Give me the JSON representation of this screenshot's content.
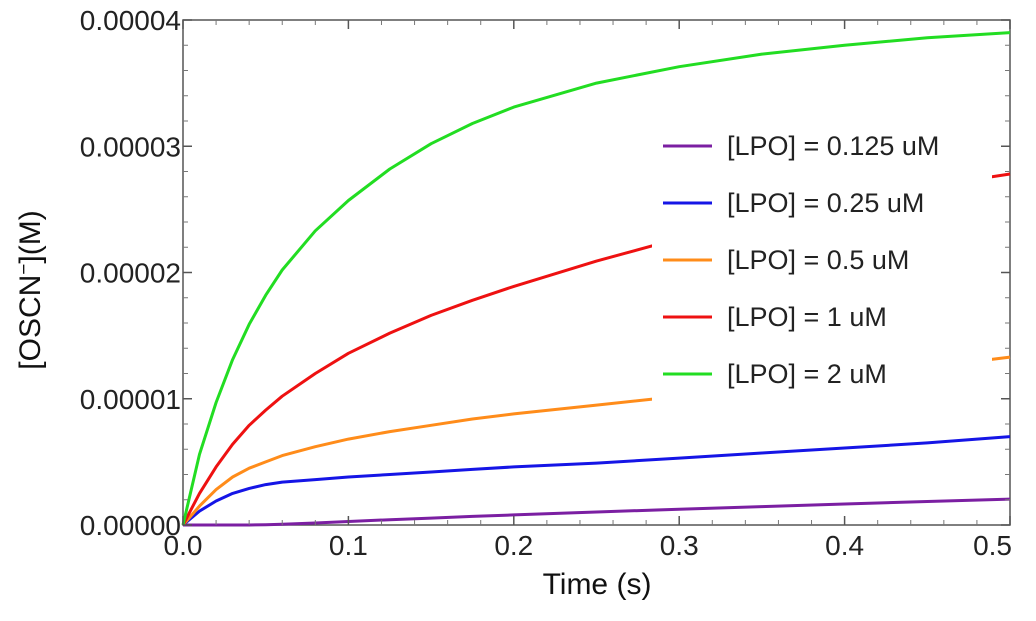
{
  "chart_data": {
    "type": "line",
    "xlabel": "Time (s)",
    "ylabel_main": "[OSCN",
    "ylabel_sup": "−",
    "ylabel_tail": "](M)",
    "xlim": [
      0,
      0.5
    ],
    "ylim": [
      0,
      4e-05
    ],
    "xticks": [
      {
        "value": 0.0,
        "label": "0.0"
      },
      {
        "value": 0.1,
        "label": "0.1"
      },
      {
        "value": 0.2,
        "label": "0.2"
      },
      {
        "value": 0.3,
        "label": "0.3"
      },
      {
        "value": 0.4,
        "label": "0.4"
      },
      {
        "value": 0.5,
        "label": "0.5"
      }
    ],
    "yticks": [
      {
        "value": 0.0,
        "label": "0.00000"
      },
      {
        "value": 1e-05,
        "label": "0.00001"
      },
      {
        "value": 2e-05,
        "label": "0.00002"
      },
      {
        "value": 3e-05,
        "label": "0.00003"
      },
      {
        "value": 4e-05,
        "label": "0.00004"
      }
    ],
    "grid": false,
    "legend_position": "right",
    "x": [
      0,
      0.01,
      0.02,
      0.03,
      0.04,
      0.05,
      0.06,
      0.08,
      0.1,
      0.125,
      0.15,
      0.175,
      0.2,
      0.25,
      0.3,
      0.35,
      0.4,
      0.45,
      0.5
    ],
    "series": [
      {
        "name": "[LPO] = 0.125 uM",
        "color": "#7B1FA2",
        "values": [
          0,
          0,
          0,
          0,
          0,
          2e-08,
          6e-08,
          1.6e-07,
          2.8e-07,
          4.2e-07,
          5.5e-07,
          6.8e-07,
          8e-07,
          1.03e-06,
          1.25e-06,
          1.46e-06,
          1.66e-06,
          1.86e-06,
          2.05e-06
        ]
      },
      {
        "name": "[LPO] = 0.25 uM",
        "color": "#1515E6",
        "values": [
          0,
          1.1e-06,
          1.9e-06,
          2.5e-06,
          2.9e-06,
          3.2e-06,
          3.4e-06,
          3.6e-06,
          3.8e-06,
          4e-06,
          4.2e-06,
          4.4e-06,
          4.6e-06,
          4.9e-06,
          5.3e-06,
          5.7e-06,
          6.1e-06,
          6.5e-06,
          7e-06
        ]
      },
      {
        "name": "[LPO] = 0.5 uM",
        "color": "#FF8C1A",
        "values": [
          0,
          1.5e-06,
          2.8e-06,
          3.8e-06,
          4.5e-06,
          5e-06,
          5.5e-06,
          6.2e-06,
          6.8e-06,
          7.4e-06,
          7.9e-06,
          8.4e-06,
          8.8e-06,
          9.5e-06,
          1.02e-05,
          1.09e-05,
          1.17e-05,
          1.25e-05,
          1.33e-05
        ]
      },
      {
        "name": "[LPO] = 1 uM",
        "color": "#EE1111",
        "values": [
          0,
          2.5e-06,
          4.6e-06,
          6.4e-06,
          7.9e-06,
          9.1e-06,
          1.02e-05,
          1.2e-05,
          1.36e-05,
          1.52e-05,
          1.66e-05,
          1.78e-05,
          1.89e-05,
          2.09e-05,
          2.27e-05,
          2.43e-05,
          2.57e-05,
          2.68e-05,
          2.78e-05
        ]
      },
      {
        "name": "[LPO] = 2 uM",
        "color": "#22DD22",
        "values": [
          0,
          5.6e-06,
          9.7e-06,
          1.31e-05,
          1.59e-05,
          1.82e-05,
          2.02e-05,
          2.33e-05,
          2.57e-05,
          2.82e-05,
          3.02e-05,
          3.18e-05,
          3.31e-05,
          3.5e-05,
          3.63e-05,
          3.73e-05,
          3.8e-05,
          3.86e-05,
          3.9e-05
        ]
      }
    ]
  }
}
